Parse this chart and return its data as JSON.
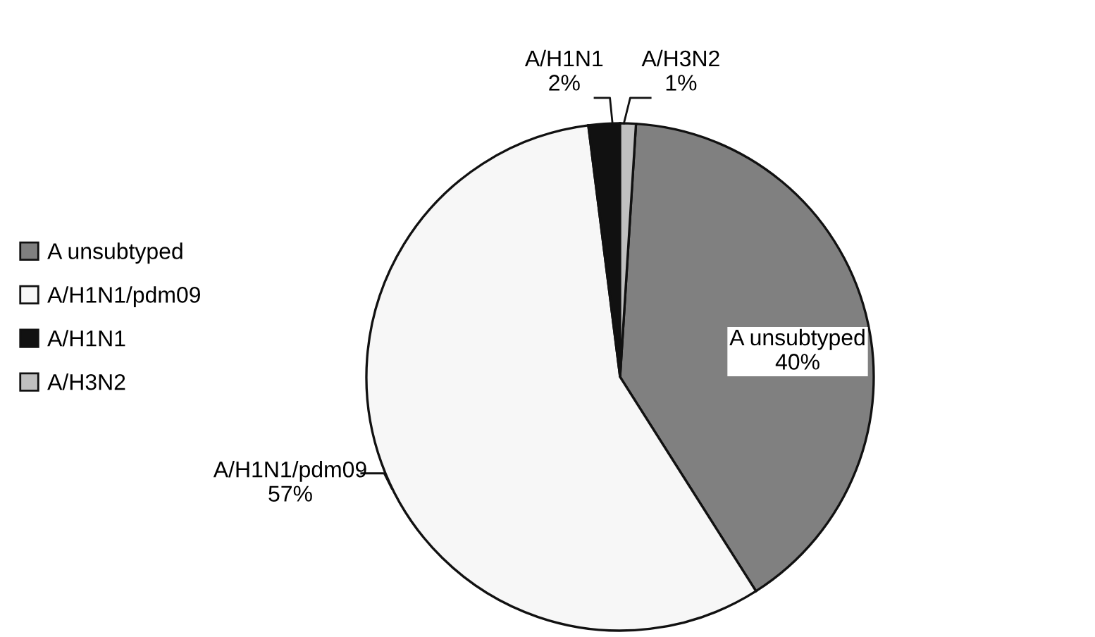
{
  "chart_data": {
    "type": "pie",
    "categories": [
      "A unsubtyped",
      "A/H1N1/pdm09",
      "A/H1N1",
      "A/H3N2"
    ],
    "values": [
      40,
      57,
      2,
      1
    ],
    "value_labels": [
      "40%",
      "57%",
      "2%",
      "1%"
    ],
    "colors": [
      "#808080",
      "#f7f7f7",
      "#111111",
      "#c0c0c0"
    ],
    "legend": "left"
  }
}
